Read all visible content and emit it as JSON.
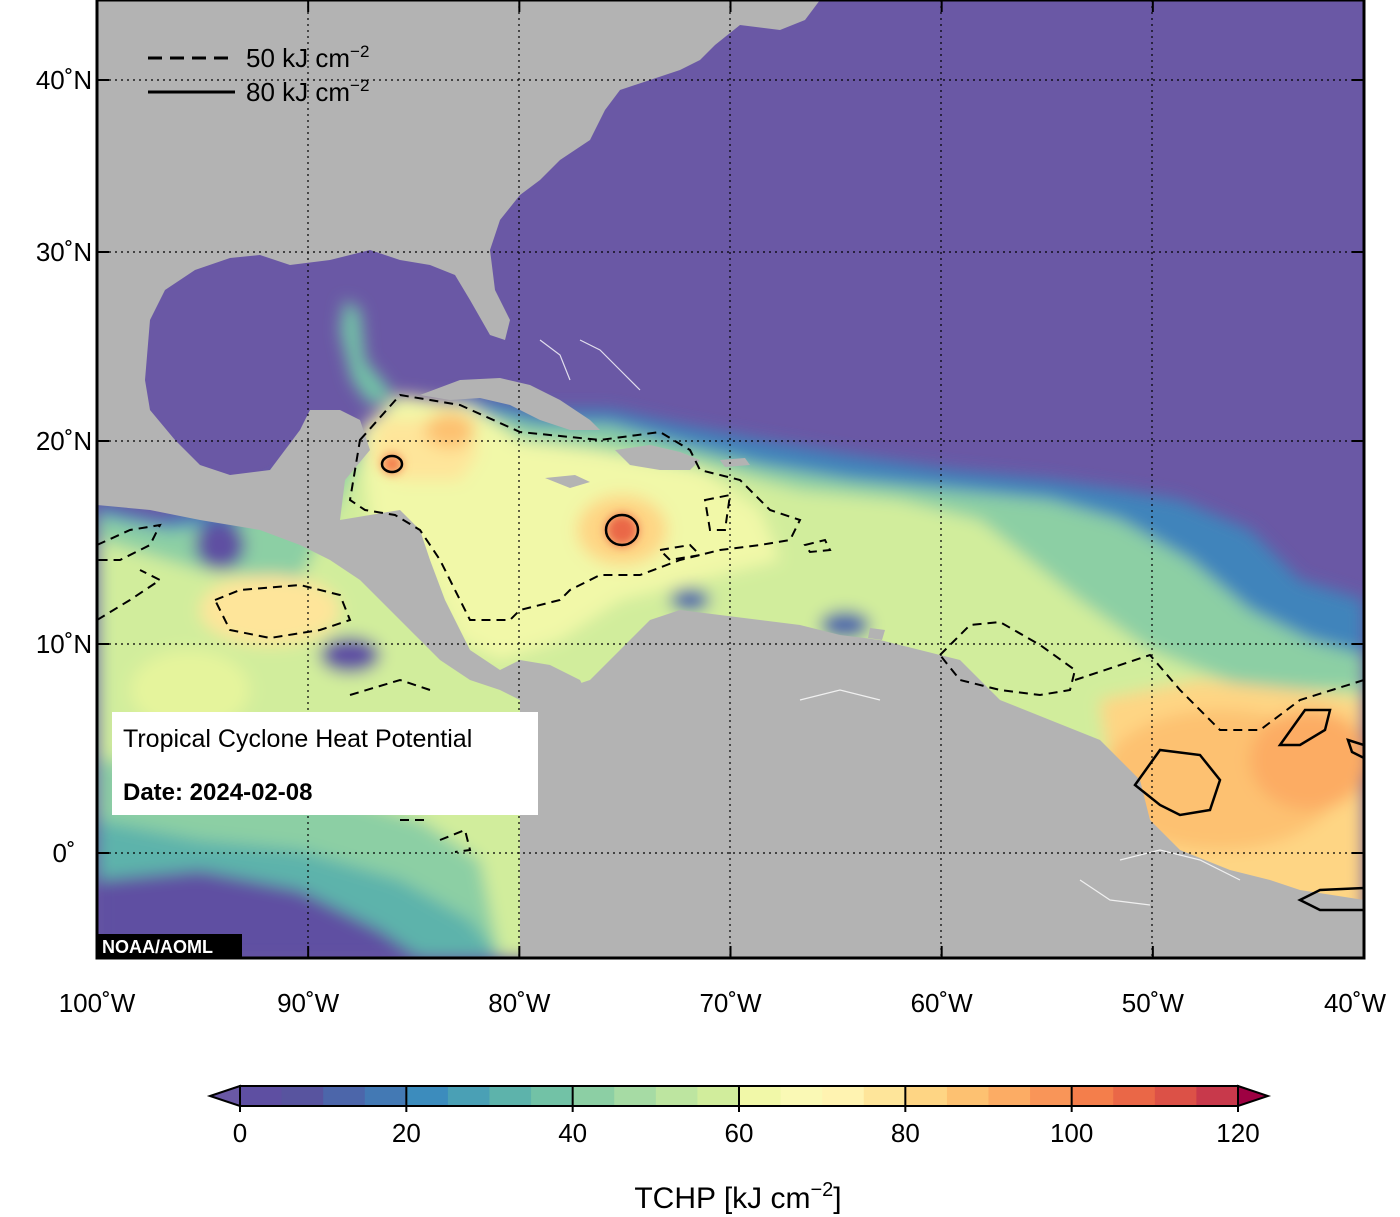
{
  "map": {
    "title": "Tropical Cyclone Heat Potential",
    "date_label": "Date: 2024-02-08",
    "credit": "NOAA/AOML",
    "extent": {
      "lon_min": -100,
      "lon_max": -40,
      "lat_min": -5,
      "lat_max": 45
    },
    "lat_ticks": [
      {
        "value": 40,
        "label": "40˚N"
      },
      {
        "value": 30,
        "label": "30˚N"
      },
      {
        "value": 20,
        "label": "20˚N"
      },
      {
        "value": 10,
        "label": "10˚N"
      },
      {
        "value": 0,
        "label": "0˚"
      }
    ],
    "lon_ticks": [
      {
        "value": -100,
        "label": "100˚W"
      },
      {
        "value": -90,
        "label": "90˚W"
      },
      {
        "value": -80,
        "label": "80˚W"
      },
      {
        "value": -70,
        "label": "70˚W"
      },
      {
        "value": -60,
        "label": "60˚W"
      },
      {
        "value": -50,
        "label": "50˚W"
      },
      {
        "value": -40,
        "label": "40˚W"
      }
    ],
    "contour_legend": [
      {
        "style": "dashed",
        "label": "50 kJ cm",
        "sup": "−2"
      },
      {
        "style": "solid",
        "label": "80 kJ cm",
        "sup": "−2"
      }
    ],
    "colors": {
      "land": "#b3b3b3",
      "low_ocean": "#6a58a5",
      "frame": "#000000"
    }
  },
  "colorbar": {
    "title": "TCHP [kJ cm",
    "title_sup": "−2",
    "title_end": "]",
    "min": 0,
    "max": 120,
    "step": 5,
    "tick_values": [
      0,
      20,
      40,
      60,
      80,
      100,
      120
    ],
    "colors": [
      "#5e4fa2",
      "#58549f",
      "#4c66aa",
      "#4379b4",
      "#3c8cbd",
      "#4aa0b5",
      "#5db3ab",
      "#72c2a6",
      "#8ccfa4",
      "#a6dba4",
      "#bde5a0",
      "#d1ed9c",
      "#e5f49c",
      "#f1f8a8",
      "#faf9b5",
      "#fff3b1",
      "#fee59a",
      "#fed584",
      "#fdc171",
      "#fcac64",
      "#f99558",
      "#f47e4b",
      "#ea6747",
      "#dc5147",
      "#c8394b",
      "#b3244e"
    ],
    "under_color": "#6a58a5",
    "over_color": "#9e0142"
  }
}
